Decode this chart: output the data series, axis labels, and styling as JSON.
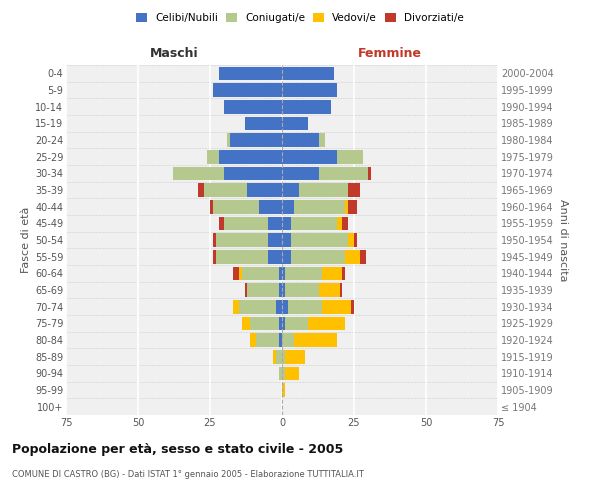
{
  "age_groups": [
    "100+",
    "95-99",
    "90-94",
    "85-89",
    "80-84",
    "75-79",
    "70-74",
    "65-69",
    "60-64",
    "55-59",
    "50-54",
    "45-49",
    "40-44",
    "35-39",
    "30-34",
    "25-29",
    "20-24",
    "15-19",
    "10-14",
    "5-9",
    "0-4"
  ],
  "birth_years": [
    "≤ 1904",
    "1905-1909",
    "1910-1914",
    "1915-1919",
    "1920-1924",
    "1925-1929",
    "1930-1934",
    "1935-1939",
    "1940-1944",
    "1945-1949",
    "1950-1954",
    "1955-1959",
    "1960-1964",
    "1965-1969",
    "1970-1974",
    "1975-1979",
    "1980-1984",
    "1985-1989",
    "1990-1994",
    "1995-1999",
    "2000-2004"
  ],
  "male": {
    "celibi": [
      0,
      0,
      0,
      0,
      1,
      1,
      2,
      1,
      1,
      5,
      5,
      5,
      8,
      12,
      20,
      22,
      18,
      13,
      20,
      24,
      22
    ],
    "coniugati": [
      0,
      0,
      1,
      2,
      8,
      10,
      13,
      11,
      13,
      18,
      18,
      15,
      16,
      15,
      18,
      4,
      1,
      0,
      0,
      0,
      0
    ],
    "vedovi": [
      0,
      0,
      0,
      1,
      2,
      3,
      2,
      0,
      1,
      0,
      0,
      0,
      0,
      0,
      0,
      0,
      0,
      0,
      0,
      0,
      0
    ],
    "divorziati": [
      0,
      0,
      0,
      0,
      0,
      0,
      0,
      1,
      2,
      1,
      1,
      2,
      1,
      2,
      0,
      0,
      0,
      0,
      0,
      0,
      0
    ]
  },
  "female": {
    "nubili": [
      0,
      0,
      0,
      0,
      0,
      1,
      2,
      1,
      1,
      3,
      3,
      3,
      4,
      6,
      13,
      19,
      13,
      9,
      17,
      19,
      18
    ],
    "coniugate": [
      0,
      0,
      1,
      1,
      4,
      8,
      12,
      12,
      13,
      19,
      20,
      16,
      18,
      17,
      17,
      9,
      2,
      0,
      0,
      0,
      0
    ],
    "vedove": [
      0,
      1,
      5,
      7,
      15,
      13,
      10,
      7,
      7,
      5,
      2,
      2,
      1,
      0,
      0,
      0,
      0,
      0,
      0,
      0,
      0
    ],
    "divorziate": [
      0,
      0,
      0,
      0,
      0,
      0,
      1,
      1,
      1,
      2,
      1,
      2,
      3,
      4,
      1,
      0,
      0,
      0,
      0,
      0,
      0
    ]
  },
  "colors": {
    "celibi": "#4472c4",
    "coniugati": "#b5c98e",
    "vedovi": "#ffc000",
    "divorziati": "#c0392b"
  },
  "title": "Popolazione per età, sesso e stato civile - 2005",
  "subtitle": "COMUNE DI CASTRO (BG) - Dati ISTAT 1° gennaio 2005 - Elaborazione TUTTITALIA.IT",
  "xlabel_left": "Maschi",
  "xlabel_right": "Femmine",
  "ylabel_left": "Fasce di età",
  "ylabel_right": "Anni di nascita",
  "xlim": 75,
  "legend_labels": [
    "Celibi/Nubili",
    "Coniugati/e",
    "Vedovi/e",
    "Divorziati/e"
  ],
  "bg_color": "#ffffff",
  "plot_bg_color": "#f0f0f0"
}
